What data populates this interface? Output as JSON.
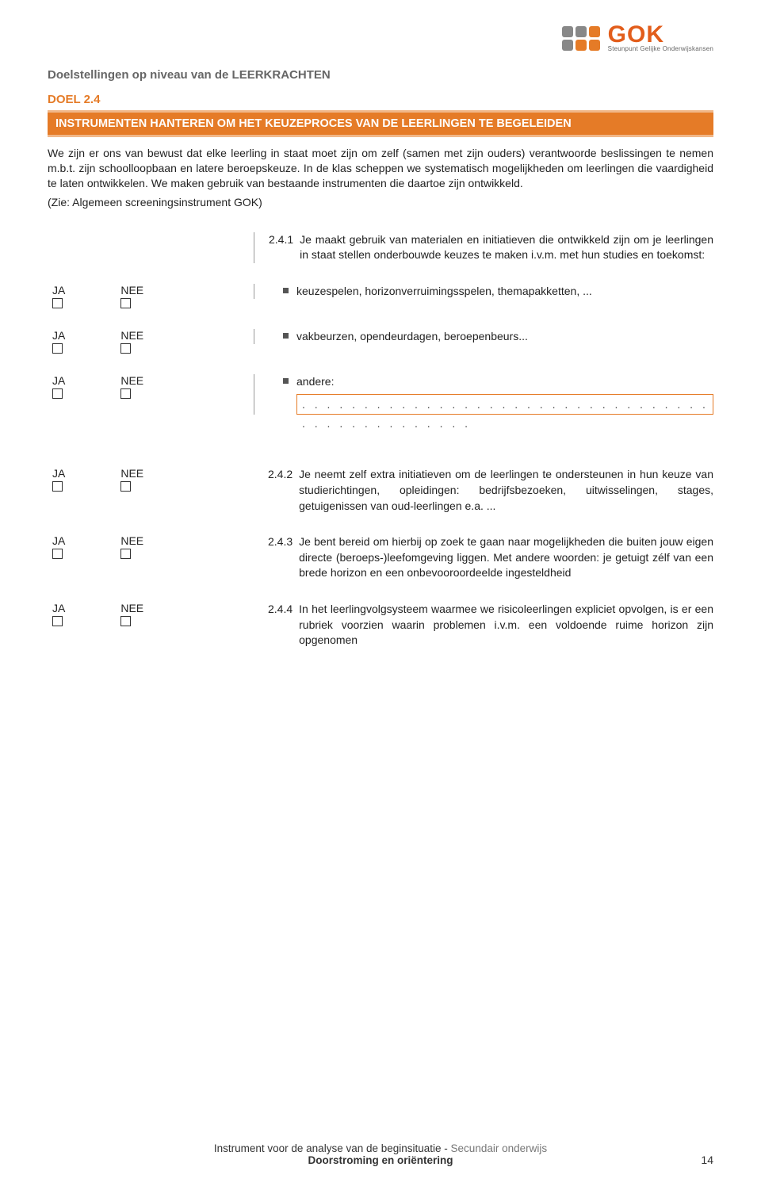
{
  "colors": {
    "accent": "#e57b27",
    "accent_banner": "#e57b27",
    "doel_label": "#e57b27",
    "grey_text": "#666666",
    "square_grey": "#888888",
    "square_orange": "#e57b27",
    "logo_orange": "#e25d1b"
  },
  "logo": {
    "main": "GOK",
    "sub": "Steunpunt Gelijke Onderwijskansen"
  },
  "header": "Doelstellingen op niveau van de LEERKRACHTEN",
  "doel_label": "DOEL 2.4",
  "banner": "INSTRUMENTEN HANTEREN OM HET KEUZEPROCES VAN DE LEERLINGEN TE BEGELEIDEN",
  "intro": "We zijn er ons van bewust dat elke leerling in staat moet zijn om zelf (samen met zijn ouders) verantwoorde beslissingen te nemen m.b.t. zijn schoolloopbaan en latere beroepskeuze. In de klas scheppen we systematisch mogelijkheden om leerlingen die vaardigheid te laten ontwikkelen. We maken gebruik van bestaande instrumenten die daartoe zijn ontwikkeld.",
  "intro_ref": "(Zie: Algemeen screeningsinstrument GOK)",
  "labels": {
    "ja": "JA",
    "nee": "NEE"
  },
  "q241": {
    "num": "2.4.1",
    "text": "Je maakt gebruik van materialen en initiatieven die ontwikkeld zijn om je leerlingen in staat stellen onderbouwde keuzes te maken i.v.m. met hun studies en toekomst:"
  },
  "bullets": {
    "b1": "keuzespelen, horizonverruimingsspelen, themapakketten, ...",
    "b2": "vakbeurzen, opendeurdagen, beroepenbeurs...",
    "b3": "andere:",
    "dots": ". . . . . . . . . . . . . . . . . . . . . . . . . . . . . . . . . . . . . . . . . . . . . . ."
  },
  "q242": {
    "num": "2.4.2",
    "text": "Je neemt  zelf extra initiatieven om de leerlingen te ondersteunen in hun keuze van studierichtingen, opleidingen: bedrijfsbezoeken, uitwisselingen, stages, getuigenissen van oud-leerlingen e.a. ..."
  },
  "q243": {
    "num": "2.4.3",
    "text": "Je bent bereid om hierbij op zoek te gaan naar mogelijkheden die buiten jouw eigen directe (beroeps-)leefomgeving liggen. Met andere woorden: je getuigt zélf van een brede horizon en een onbevooroordeelde ingesteldheid"
  },
  "q244": {
    "num": "2.4.4",
    "text": "In het leerlingvolgsysteem waarmee we risicoleerlingen expliciet opvolgen, is er een rubriek voorzien waarin problemen i.v.m. een voldoende ruime horizon zijn opgenomen"
  },
  "footer": {
    "line1a": "Instrument voor de analyse van de beginsituatie - ",
    "line1b": "Secundair onderwijs",
    "line2": "Doorstroming en oriëntering"
  },
  "page_number": "14"
}
